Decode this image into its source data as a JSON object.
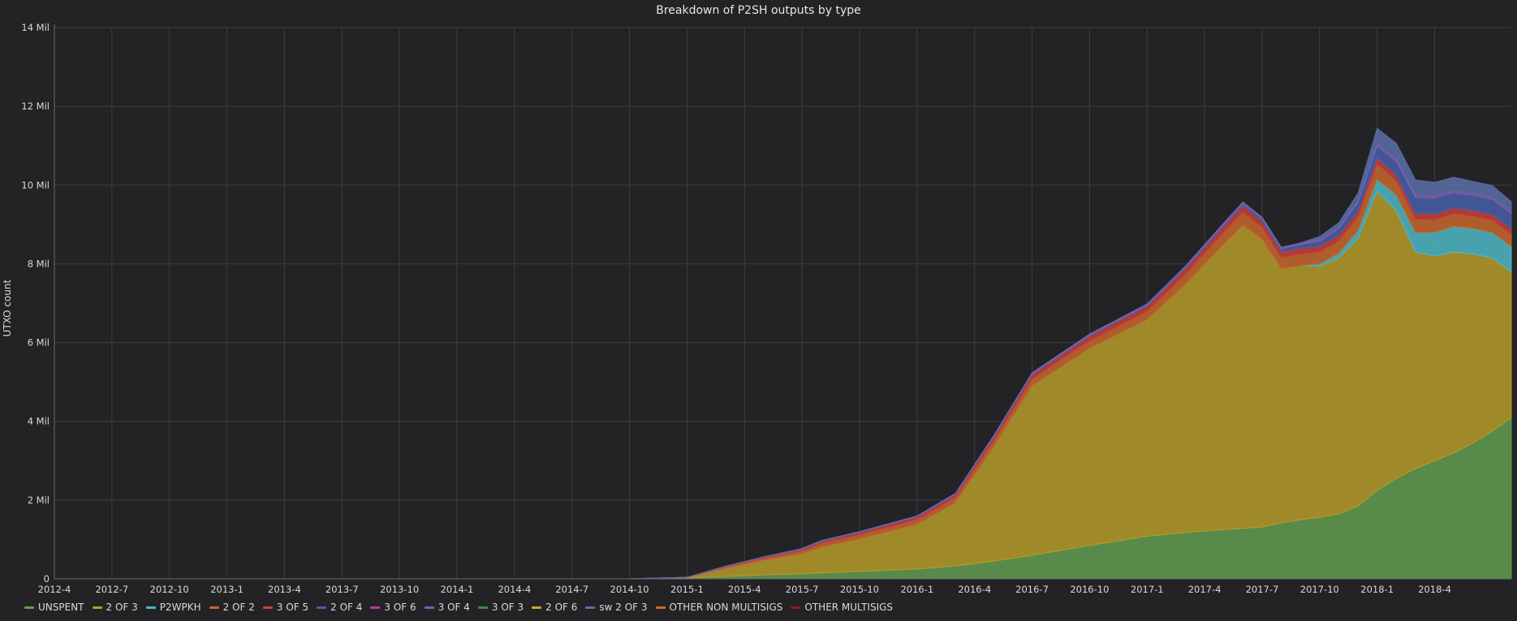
{
  "panel": {
    "title": "Breakdown of P2SH outputs by type"
  },
  "chart_data": {
    "type": "area",
    "stacked": true,
    "title": "Breakdown of P2SH outputs by type",
    "ylabel": "UTXO count",
    "xlabel": "",
    "ylim": [
      0,
      14000000
    ],
    "xlim": [
      "2012-04",
      "2018-08"
    ],
    "y_ticks": [
      {
        "value": 0,
        "label": "0"
      },
      {
        "value": 2000000,
        "label": "2 Mil"
      },
      {
        "value": 4000000,
        "label": "4 Mil"
      },
      {
        "value": 6000000,
        "label": "6 Mil"
      },
      {
        "value": 8000000,
        "label": "8 Mil"
      },
      {
        "value": 10000000,
        "label": "10 Mil"
      },
      {
        "value": 12000000,
        "label": "12 Mil"
      },
      {
        "value": 14000000,
        "label": "14 Mil"
      }
    ],
    "x_ticks": [
      "2012-4",
      "2012-7",
      "2012-10",
      "2013-1",
      "2013-4",
      "2013-7",
      "2013-10",
      "2014-1",
      "2014-4",
      "2014-7",
      "2014-10",
      "2015-1",
      "2015-4",
      "2015-7",
      "2015-10",
      "2016-1",
      "2016-4",
      "2016-7",
      "2016-10",
      "2017-1",
      "2017-4",
      "2017-7",
      "2017-10",
      "2018-1",
      "2018-4"
    ],
    "grid": true,
    "legend_position": "bottom",
    "x": [
      "2013-04",
      "2014-04",
      "2014-10",
      "2015-01",
      "2015-03",
      "2015-05",
      "2015-07",
      "2015-08",
      "2015-10",
      "2016-01",
      "2016-03",
      "2016-05",
      "2016-07",
      "2016-10",
      "2017-01",
      "2017-03",
      "2017-05",
      "2017-06",
      "2017-07",
      "2017-08",
      "2017-09",
      "2017-10",
      "2017-11",
      "2017-12",
      "2018-01",
      "2018-02",
      "2018-03",
      "2018-04",
      "2018-05",
      "2018-06",
      "2018-07",
      "2018-08"
    ],
    "series": [
      {
        "name": "UNSPENT",
        "color": "#629e51",
        "values": [
          0,
          0,
          0,
          20000,
          60000,
          100000,
          130000,
          150000,
          190000,
          250000,
          330000,
          450000,
          600000,
          850000,
          1080000,
          1180000,
          1250000,
          1280000,
          1320000,
          1420000,
          1500000,
          1560000,
          1650000,
          1850000,
          2250000,
          2550000,
          2800000,
          3000000,
          3200000,
          3450000,
          3750000,
          4100000
        ]
      },
      {
        "name": "2 OF 3",
        "color": "#b69b2a",
        "values": [
          0,
          0,
          0,
          20000,
          200000,
          370000,
          500000,
          650000,
          820000,
          1130000,
          1600000,
          2900000,
          4300000,
          5000000,
          5500000,
          6300000,
          7250000,
          7700000,
          7300000,
          6450000,
          6450000,
          6380000,
          6500000,
          6800000,
          7600000,
          6800000,
          5500000,
          5200000,
          5100000,
          4800000,
          4400000,
          3700000
        ]
      },
      {
        "name": "P2WPKH",
        "color": "#4fb8c5",
        "values": [
          0,
          0,
          0,
          0,
          0,
          0,
          0,
          0,
          0,
          0,
          0,
          0,
          0,
          0,
          0,
          0,
          0,
          0,
          0,
          0,
          0,
          60000,
          120000,
          200000,
          300000,
          400000,
          500000,
          600000,
          650000,
          650000,
          650000,
          650000
        ]
      },
      {
        "name": "2 OF 2",
        "color": "#c8672d",
        "values": [
          0,
          0,
          0,
          0,
          30000,
          50000,
          80000,
          100000,
          110000,
          120000,
          130000,
          150000,
          170000,
          190000,
          210000,
          250000,
          300000,
          330000,
          300000,
          290000,
          300000,
          300000,
          310000,
          340000,
          380000,
          360000,
          330000,
          320000,
          320000,
          310000,
          310000,
          300000
        ]
      },
      {
        "name": "3 OF 5",
        "color": "#c8403a",
        "values": [
          0,
          0,
          0,
          0,
          20000,
          30000,
          40000,
          50000,
          60000,
          70000,
          80000,
          100000,
          120000,
          130000,
          140000,
          150000,
          160000,
          170000,
          160000,
          150000,
          150000,
          150000,
          150000,
          150000,
          160000,
          150000,
          150000,
          150000,
          150000,
          150000,
          150000,
          150000
        ]
      },
      {
        "name": "2 OF 4",
        "color": "#475fa8",
        "values": [
          0,
          0,
          0,
          0,
          5000,
          5000,
          10000,
          10000,
          10000,
          10000,
          15000,
          15000,
          20000,
          20000,
          25000,
          30000,
          40000,
          50000,
          60000,
          70000,
          90000,
          120000,
          160000,
          210000,
          300000,
          350000,
          400000,
          400000,
          380000,
          380000,
          380000,
          380000
        ]
      },
      {
        "name": "3 OF 6",
        "color": "#b73f9d",
        "values": [
          0,
          0,
          0,
          0,
          0,
          0,
          0,
          0,
          0,
          0,
          0,
          0,
          0,
          0,
          0,
          0,
          0,
          0,
          0,
          0,
          0,
          0,
          0,
          0,
          0,
          0,
          0,
          0,
          0,
          0,
          0,
          0
        ]
      },
      {
        "name": "3 OF 4",
        "color": "#8a56b0",
        "values": [
          0,
          0,
          0,
          0,
          5000,
          5000,
          10000,
          10000,
          10000,
          15000,
          15000,
          20000,
          20000,
          25000,
          25000,
          30000,
          35000,
          40000,
          40000,
          40000,
          40000,
          40000,
          40000,
          40000,
          50000,
          50000,
          50000,
          50000,
          50000,
          50000,
          50000,
          50000
        ]
      },
      {
        "name": "3 OF 3",
        "color": "#3f8a3f",
        "values": [
          0,
          0,
          0,
          0,
          0,
          0,
          0,
          0,
          0,
          0,
          0,
          0,
          0,
          0,
          0,
          0,
          0,
          0,
          0,
          0,
          0,
          0,
          0,
          0,
          0,
          0,
          0,
          0,
          0,
          0,
          0,
          0
        ]
      },
      {
        "name": "2 OF 6",
        "color": "#c9a82a",
        "values": [
          0,
          0,
          0,
          0,
          0,
          0,
          0,
          0,
          0,
          0,
          0,
          0,
          0,
          0,
          0,
          0,
          0,
          0,
          0,
          0,
          0,
          0,
          0,
          0,
          0,
          0,
          0,
          0,
          0,
          0,
          0,
          0
        ]
      },
      {
        "name": "sw 2 OF 3",
        "color": "#5a6ea8",
        "values": [
          0,
          0,
          0,
          0,
          0,
          0,
          0,
          0,
          0,
          0,
          0,
          0,
          0,
          0,
          0,
          0,
          0,
          0,
          0,
          0,
          0,
          80000,
          110000,
          200000,
          400000,
          400000,
          400000,
          350000,
          350000,
          300000,
          300000,
          250000
        ]
      },
      {
        "name": "OTHER NON MULTISIGS",
        "color": "#c96e2d",
        "values": [
          0,
          0,
          0,
          0,
          0,
          0,
          0,
          0,
          0,
          0,
          0,
          0,
          0,
          0,
          0,
          0,
          0,
          0,
          0,
          0,
          0,
          0,
          0,
          0,
          0,
          0,
          0,
          0,
          0,
          0,
          0,
          0
        ]
      },
      {
        "name": "OTHER MULTISIGS",
        "color": "#8e1a1a",
        "values": [
          0,
          0,
          0,
          0,
          0,
          0,
          0,
          0,
          0,
          0,
          0,
          0,
          0,
          0,
          0,
          0,
          0,
          0,
          0,
          0,
          0,
          0,
          0,
          0,
          0,
          0,
          0,
          0,
          0,
          0,
          0,
          0
        ]
      }
    ]
  }
}
